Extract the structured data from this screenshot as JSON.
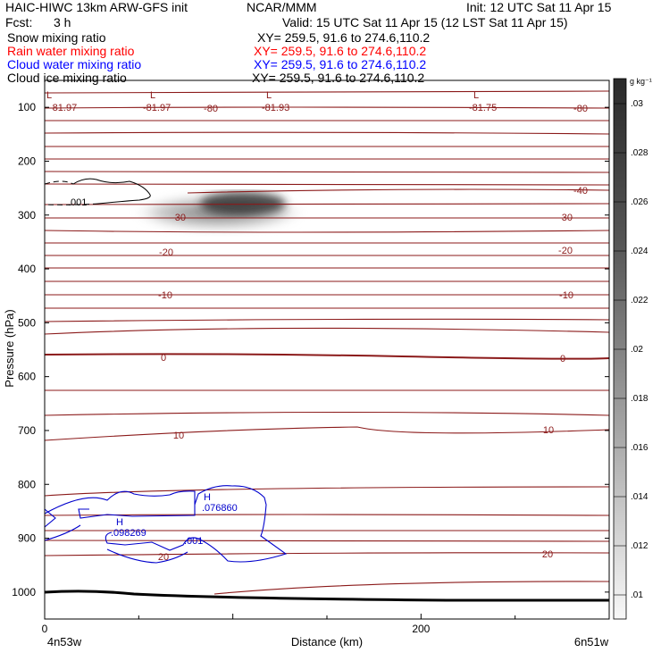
{
  "header": {
    "title_left": "HAIC-HIWC 13km ARW-GFS init",
    "title_center": "NCAR/MMM",
    "init": "Init: 12 UTC Sat 11 Apr 15",
    "fcst_label": "Fcst:",
    "fcst_value": "3 h",
    "valid": "Valid: 15 UTC Sat 11 Apr 15 (12 LST Sat 11 Apr 15)"
  },
  "fields": [
    {
      "name": "Snow mixing ratio",
      "xy": "XY= 259.5, 91.6 to 274.6,110.2",
      "color": "#000000"
    },
    {
      "name": "Rain water mixing ratio",
      "xy": "XY= 259.5, 91.6 to 274.6,110.2",
      "color": "#ff0000"
    },
    {
      "name": "Cloud water mixing ratio",
      "xy": "XY= 259.5, 91.6 to 274.6,110.2",
      "color": "#0000ff"
    },
    {
      "name": "Cloud ice mixing ratio",
      "xy": "XY= 259.5, 91.6 to 274.6,110.2",
      "color": "#000000"
    }
  ],
  "colorbar": {
    "unit": "g kg⁻¹",
    "ticks": [
      ".03",
      ".028",
      ".026",
      ".024",
      ".022",
      ".02",
      ".018",
      ".016",
      ".014",
      ".012",
      ".01"
    ],
    "range": [
      0.01,
      0.032
    ]
  },
  "chart_data": {
    "type": "contour",
    "xlabel": "Distance (km)",
    "ylabel": "Pressure (hPa)",
    "xlim": [
      0,
      300
    ],
    "ylim": [
      1050,
      50
    ],
    "x_ticks": [
      0,
      200
    ],
    "x_end_labels": [
      "4n53w",
      "6n51w"
    ],
    "y_ticks": [
      100,
      200,
      300,
      400,
      500,
      600,
      700,
      800,
      900,
      1000
    ],
    "temperature_labels": [
      "-80",
      "-40",
      "-30",
      "-20",
      "-10",
      "0",
      "10",
      "20"
    ],
    "low_labels": [
      "-81.97",
      "-81.97",
      "-81.93",
      "-81.75"
    ],
    "cloud_ice_label": ".001",
    "cloud_water_labels": [
      ".076860",
      ".098269",
      ".001"
    ],
    "cloud_water_highs": [
      "H",
      "H"
    ],
    "lows": [
      "L",
      "L",
      "L",
      "L"
    ],
    "snow_max_center": {
      "x_km": 107,
      "p_hpa": 283,
      "value": 0.03
    }
  }
}
